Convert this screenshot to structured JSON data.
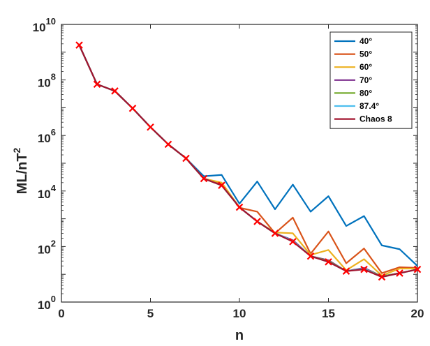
{
  "chart_data": {
    "type": "line",
    "xlabel": "n",
    "ylabel": "ML/nT",
    "ylabel_superscript": "2",
    "xlim": [
      0,
      20
    ],
    "ylim": [
      1,
      10000000000
    ],
    "yscale": "log",
    "grid": false,
    "legend_position": "top-right",
    "x_ticks": [
      0,
      5,
      10,
      15,
      20
    ],
    "x_tick_labels": [
      "0",
      "5",
      "10",
      "15",
      "20"
    ],
    "y_ticks": [
      1,
      100,
      10000,
      1000000,
      100000000,
      10000000000
    ],
    "y_tick_labels": [
      {
        "base": "10",
        "exp": "0"
      },
      {
        "base": "10",
        "exp": "2"
      },
      {
        "base": "10",
        "exp": "4"
      },
      {
        "base": "10",
        "exp": "6"
      },
      {
        "base": "10",
        "exp": "8"
      },
      {
        "base": "10",
        "exp": "10"
      }
    ],
    "x": [
      1,
      2,
      3,
      4,
      5,
      6,
      7,
      8,
      9,
      10,
      11,
      12,
      13,
      14,
      15,
      16,
      17,
      18,
      19,
      20
    ],
    "series": [
      {
        "name": "40°",
        "color": "#0072BD",
        "values": [
          1800000000,
          70000000,
          40000000,
          9500000,
          2000000,
          480000,
          150000,
          34000,
          38000,
          3500,
          22000,
          2200,
          17000,
          1800,
          6500,
          550,
          1250,
          110,
          80,
          20
        ]
      },
      {
        "name": "50°",
        "color": "#D95319",
        "values": [
          1800000000,
          70000000,
          40000000,
          9500000,
          2000000,
          480000,
          150000,
          28000,
          18000,
          2500,
          1800,
          300,
          1100,
          55,
          350,
          25,
          85,
          11,
          18,
          17
        ]
      },
      {
        "name": "60°",
        "color": "#EDB120",
        "values": [
          1800000000,
          70000000,
          40000000,
          9500000,
          2000000,
          480000,
          150000,
          28000,
          20000,
          2600,
          800,
          320,
          300,
          50,
          75,
          14,
          35,
          9,
          16,
          16
        ]
      },
      {
        "name": "70°",
        "color": "#7E2F8E",
        "values": [
          1800000000,
          70000000,
          40000000,
          9500000,
          2000000,
          480000,
          150000,
          28000,
          16000,
          2600,
          800,
          300,
          170,
          45,
          32,
          13,
          17,
          8.5,
          11,
          15
        ]
      },
      {
        "name": "80°",
        "color": "#77AC30",
        "values": [
          1800000000,
          70000000,
          40000000,
          9500000,
          2000000,
          480000,
          150000,
          28000,
          16000,
          2600,
          800,
          300,
          160,
          45,
          30,
          13,
          16,
          8.5,
          11,
          15
        ]
      },
      {
        "name": "87.4°",
        "color": "#4DBEEE",
        "values": [
          1800000000,
          70000000,
          40000000,
          9500000,
          2000000,
          480000,
          150000,
          28000,
          16000,
          2600,
          800,
          300,
          160,
          45,
          28,
          13,
          16,
          8,
          11,
          15
        ]
      },
      {
        "name": "Chaos 8",
        "color": "#A2142F",
        "marker": "x",
        "marker_color": "#FF0000",
        "values": [
          1800000000,
          70000000,
          40000000,
          9500000,
          2000000,
          480000,
          150000,
          28000,
          16000,
          2600,
          800,
          300,
          150,
          45,
          28,
          13,
          15,
          8,
          11,
          15
        ]
      }
    ]
  }
}
